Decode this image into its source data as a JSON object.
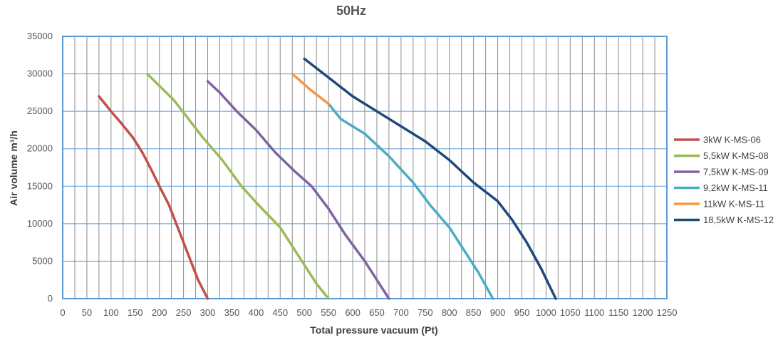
{
  "chart_data": {
    "type": "line",
    "title": "50Hz",
    "xlabel": "Total pressure vacuum (Pt)",
    "ylabel": "Air volume m³/h",
    "xlim": [
      0,
      1250
    ],
    "ylim": [
      0,
      35000
    ],
    "x_ticks": [
      "0",
      "50",
      "100",
      "150",
      "200",
      "250",
      "300",
      "350",
      "400",
      "450",
      "500",
      "550",
      "600",
      "650",
      "700",
      "750",
      "800",
      "850",
      "900",
      "950",
      "1000",
      "1050",
      "1100",
      "1150",
      "1200",
      "1250"
    ],
    "y_ticks": [
      "0",
      "5000",
      "10000",
      "15000",
      "20000",
      "25000",
      "30000",
      "35000"
    ],
    "grid": true,
    "legend_position": "right",
    "series": [
      {
        "name": "3kW K-MS-06",
        "color": "#c0504d",
        "points": [
          [
            75,
            27000
          ],
          [
            100,
            25000
          ],
          [
            120,
            23500
          ],
          [
            145,
            21500
          ],
          [
            165,
            19500
          ],
          [
            185,
            17000
          ],
          [
            200,
            15000
          ],
          [
            220,
            12500
          ],
          [
            235,
            10000
          ],
          [
            250,
            7500
          ],
          [
            265,
            5000
          ],
          [
            280,
            2500
          ],
          [
            300,
            0
          ]
        ]
      },
      {
        "name": "5,5kW K-MS-08",
        "color": "#9bbb59",
        "points": [
          [
            175,
            30000
          ],
          [
            230,
            26500
          ],
          [
            260,
            24000
          ],
          [
            290,
            21500
          ],
          [
            330,
            18500
          ],
          [
            370,
            15000
          ],
          [
            405,
            12500
          ],
          [
            450,
            9500
          ],
          [
            475,
            7000
          ],
          [
            500,
            4500
          ],
          [
            525,
            2000
          ],
          [
            550,
            0
          ]
        ]
      },
      {
        "name": "7,5kW K-MS-09",
        "color": "#8064a2",
        "points": [
          [
            300,
            29000
          ],
          [
            325,
            27500
          ],
          [
            360,
            25000
          ],
          [
            400,
            22500
          ],
          [
            440,
            19500
          ],
          [
            480,
            17000
          ],
          [
            515,
            15000
          ],
          [
            550,
            12000
          ],
          [
            585,
            8500
          ],
          [
            625,
            5000
          ],
          [
            650,
            2500
          ],
          [
            675,
            0
          ]
        ]
      },
      {
        "name": "9,2kW K-MS-11",
        "color": "#4bacc6",
        "points": [
          [
            550,
            26000
          ],
          [
            575,
            24000
          ],
          [
            625,
            22000
          ],
          [
            675,
            19000
          ],
          [
            725,
            15500
          ],
          [
            760,
            12500
          ],
          [
            800,
            9500
          ],
          [
            830,
            6500
          ],
          [
            860,
            3500
          ],
          [
            890,
            0
          ]
        ]
      },
      {
        "name": "11kW K-MS-11",
        "color": "#f79646",
        "points": [
          [
            475,
            30000
          ],
          [
            510,
            28000
          ],
          [
            550,
            26000
          ]
        ]
      },
      {
        "name": "18,5kW K-MS-12",
        "color": "#1f497d",
        "points": [
          [
            500,
            32000
          ],
          [
            550,
            29500
          ],
          [
            600,
            27000
          ],
          [
            675,
            24000
          ],
          [
            750,
            21000
          ],
          [
            800,
            18500
          ],
          [
            850,
            15500
          ],
          [
            900,
            13000
          ],
          [
            930,
            10500
          ],
          [
            960,
            7500
          ],
          [
            990,
            4000
          ],
          [
            1020,
            0
          ]
        ]
      }
    ]
  }
}
